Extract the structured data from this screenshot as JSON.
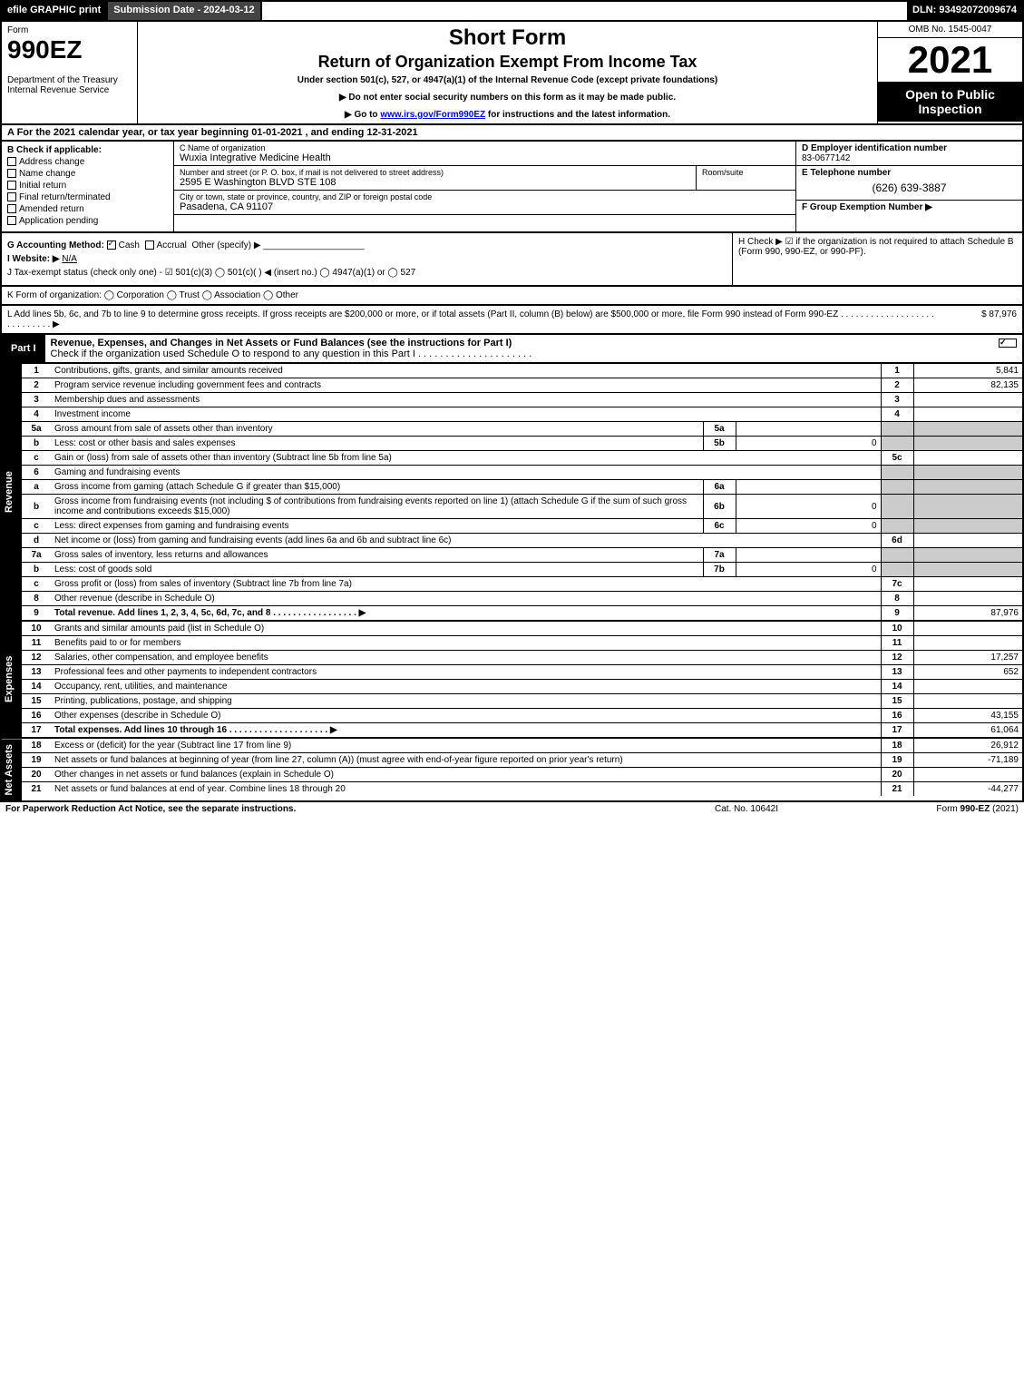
{
  "topbar": {
    "efile": "efile GRAPHIC print",
    "subdate": "Submission Date - 2024-03-12",
    "dln": "DLN: 93492072009674"
  },
  "header": {
    "form_label": "Form",
    "form_num": "990EZ",
    "dept": "Department of the Treasury\nInternal Revenue Service",
    "title1": "Short Form",
    "title2": "Return of Organization Exempt From Income Tax",
    "subtitle": "Under section 501(c), 527, or 4947(a)(1) of the Internal Revenue Code (except private foundations)",
    "inst1": "▶ Do not enter social security numbers on this form as it may be made public.",
    "inst2_pre": "▶ Go to ",
    "inst2_link": "www.irs.gov/Form990EZ",
    "inst2_post": " for instructions and the latest information.",
    "omb": "OMB No. 1545-0047",
    "year": "2021",
    "open": "Open to Public Inspection"
  },
  "A": "A  For the 2021 calendar year, or tax year beginning 01-01-2021 , and ending 12-31-2021",
  "B": {
    "label": "B  Check if applicable:",
    "opts": [
      "Address change",
      "Name change",
      "Initial return",
      "Final return/terminated",
      "Amended return",
      "Application pending"
    ]
  },
  "C": {
    "label": "C Name of organization",
    "val": "Wuxia Integrative Medicine Health",
    "addr_label": "Number and street (or P. O. box, if mail is not delivered to street address)",
    "addr": "2595 E Washington BLVD STE 108",
    "rs_label": "Room/suite",
    "city_label": "City or town, state or province, country, and ZIP or foreign postal code",
    "city": "Pasadena, CA  91107"
  },
  "D": {
    "label": "D Employer identification number",
    "val": "83-0677142"
  },
  "E": {
    "label": "E Telephone number",
    "val": "(626) 639-3887"
  },
  "F": {
    "label": "F Group Exemption Number  ▶",
    "val": ""
  },
  "G": {
    "label": "G Accounting Method:",
    "cash": "Cash",
    "accrual": "Accrual",
    "other": "Other (specify) ▶"
  },
  "H": "H   Check ▶ ☑ if the organization is not required to attach Schedule B (Form 990, 990-EZ, or 990-PF).",
  "I": {
    "label": "I Website: ▶",
    "val": "N/A"
  },
  "J": "J Tax-exempt status (check only one) - ☑ 501(c)(3)  ◯ 501(c)(  ) ◀ (insert no.)  ◯ 4947(a)(1) or  ◯ 527",
  "K": "K Form of organization:   ◯ Corporation   ◯ Trust   ◯ Association   ◯ Other",
  "L": {
    "text": "L Add lines 5b, 6c, and 7b to line 9 to determine gross receipts. If gross receipts are $200,000 or more, or if total assets (Part II, column (B) below) are $500,000 or more, file Form 990 instead of Form 990-EZ  .  .  .  .  .  .  .  .  .  .  .  .  .  .  .  .  .  .  .  .  .  .  .  .  .  .  .  .  ▶",
    "amt": "$ 87,976"
  },
  "PartI": {
    "label": "Part I",
    "title": "Revenue, Expenses, and Changes in Net Assets or Fund Balances (see the instructions for Part I)",
    "sub": "Check if the organization used Schedule O to respond to any question in this Part I .  .  .  .  .  .  .  .  .  .  .  .  .  .  .  .  .  .  .  .  ."
  },
  "revenue": {
    "side": "Revenue",
    "rows": [
      {
        "ln": "1",
        "desc": "Contributions, gifts, grants, and similar amounts received",
        "n": "1",
        "v": "5,841"
      },
      {
        "ln": "2",
        "desc": "Program service revenue including government fees and contracts",
        "n": "2",
        "v": "82,135"
      },
      {
        "ln": "3",
        "desc": "Membership dues and assessments",
        "n": "3",
        "v": ""
      },
      {
        "ln": "4",
        "desc": "Investment income",
        "n": "4",
        "v": ""
      },
      {
        "ln": "5a",
        "desc": "Gross amount from sale of assets other than inventory",
        "subn": "5a",
        "subv": "",
        "grey": true
      },
      {
        "ln": "b",
        "desc": "Less: cost or other basis and sales expenses",
        "subn": "5b",
        "subv": "0",
        "grey": true
      },
      {
        "ln": "c",
        "desc": "Gain or (loss) from sale of assets other than inventory (Subtract line 5b from line 5a)",
        "n": "5c",
        "v": ""
      },
      {
        "ln": "6",
        "desc": "Gaming and fundraising events",
        "grey": true,
        "noval": true
      },
      {
        "ln": "a",
        "desc": "Gross income from gaming (attach Schedule G if greater than $15,000)",
        "subn": "6a",
        "subv": "",
        "grey": true
      },
      {
        "ln": "b",
        "desc": "Gross income from fundraising events (not including $                       of contributions from fundraising events reported on line 1) (attach Schedule G if the sum of such gross income and contributions exceeds $15,000)",
        "subn": "6b",
        "subv": "0",
        "grey": true
      },
      {
        "ln": "c",
        "desc": "Less: direct expenses from gaming and fundraising events",
        "subn": "6c",
        "subv": "0",
        "grey": true
      },
      {
        "ln": "d",
        "desc": "Net income or (loss) from gaming and fundraising events (add lines 6a and 6b and subtract line 6c)",
        "n": "6d",
        "v": ""
      },
      {
        "ln": "7a",
        "desc": "Gross sales of inventory, less returns and allowances",
        "subn": "7a",
        "subv": "",
        "grey": true
      },
      {
        "ln": "b",
        "desc": "Less: cost of goods sold",
        "subn": "7b",
        "subv": "0",
        "grey": true
      },
      {
        "ln": "c",
        "desc": "Gross profit or (loss) from sales of inventory (Subtract line 7b from line 7a)",
        "n": "7c",
        "v": ""
      },
      {
        "ln": "8",
        "desc": "Other revenue (describe in Schedule O)",
        "n": "8",
        "v": ""
      },
      {
        "ln": "9",
        "desc": "Total revenue. Add lines 1, 2, 3, 4, 5c, 6d, 7c, and 8  .  .  .  .  .  .  .  .  .  .  .  .  .  .  .  .  .  ▶",
        "n": "9",
        "v": "87,976",
        "bold": true
      }
    ]
  },
  "expenses": {
    "side": "Expenses",
    "rows": [
      {
        "ln": "10",
        "desc": "Grants and similar amounts paid (list in Schedule O)",
        "n": "10",
        "v": ""
      },
      {
        "ln": "11",
        "desc": "Benefits paid to or for members",
        "n": "11",
        "v": ""
      },
      {
        "ln": "12",
        "desc": "Salaries, other compensation, and employee benefits",
        "n": "12",
        "v": "17,257"
      },
      {
        "ln": "13",
        "desc": "Professional fees and other payments to independent contractors",
        "n": "13",
        "v": "652"
      },
      {
        "ln": "14",
        "desc": "Occupancy, rent, utilities, and maintenance",
        "n": "14",
        "v": ""
      },
      {
        "ln": "15",
        "desc": "Printing, publications, postage, and shipping",
        "n": "15",
        "v": ""
      },
      {
        "ln": "16",
        "desc": "Other expenses (describe in Schedule O)",
        "n": "16",
        "v": "43,155"
      },
      {
        "ln": "17",
        "desc": "Total expenses. Add lines 10 through 16     .  .  .  .  .  .  .  .  .  .  .  .  .  .  .  .  .  .  .  .  ▶",
        "n": "17",
        "v": "61,064",
        "bold": true
      }
    ]
  },
  "netassets": {
    "side": "Net Assets",
    "rows": [
      {
        "ln": "18",
        "desc": "Excess or (deficit) for the year (Subtract line 17 from line 9)",
        "n": "18",
        "v": "26,912"
      },
      {
        "ln": "19",
        "desc": "Net assets or fund balances at beginning of year (from line 27, column (A)) (must agree with end-of-year figure reported on prior year's return)",
        "n": "19",
        "v": "-71,189"
      },
      {
        "ln": "20",
        "desc": "Other changes in net assets or fund balances (explain in Schedule O)",
        "n": "20",
        "v": ""
      },
      {
        "ln": "21",
        "desc": "Net assets or fund balances at end of year. Combine lines 18 through 20",
        "n": "21",
        "v": "-44,277"
      }
    ]
  },
  "footer": {
    "left": "For Paperwork Reduction Act Notice, see the separate instructions.",
    "center": "Cat. No. 10642I",
    "right": "Form 990-EZ (2021)"
  }
}
